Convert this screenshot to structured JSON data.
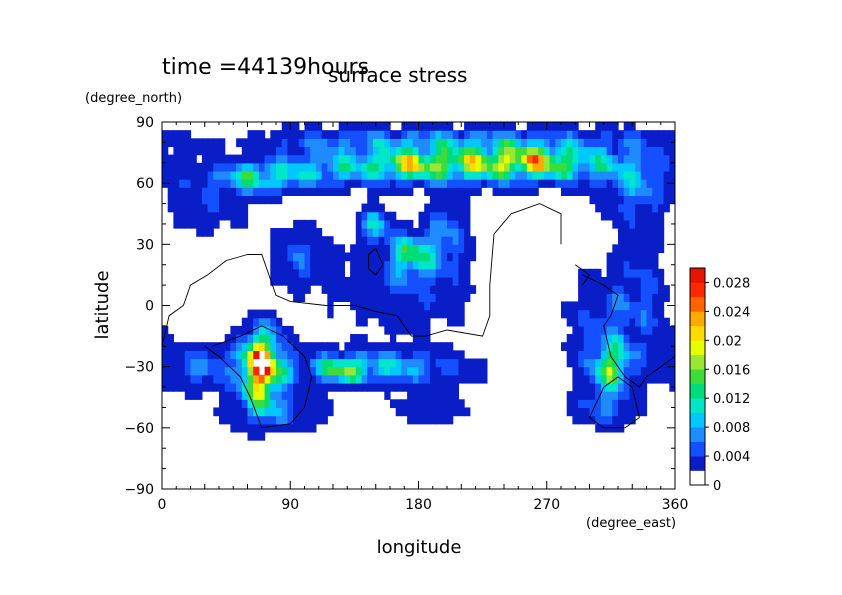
{
  "chart_data": {
    "type": "heatmap",
    "title": "surface stress",
    "subtitle": "time =44139hours",
    "xlabel": "longitude",
    "ylabel": "latitude",
    "x_unit": "(degree_east)",
    "y_unit": "(degree_north)",
    "xlim": [
      0,
      360
    ],
    "ylim": [
      -90,
      90
    ],
    "x_ticks": [
      "0",
      "90",
      "180",
      "270",
      "360"
    ],
    "y_ticks": [
      "90",
      "60",
      "30",
      "0",
      "−30",
      "−60",
      "−90"
    ],
    "x_tick_values": [
      0,
      90,
      180,
      270,
      360
    ],
    "y_tick_values": [
      90,
      60,
      30,
      0,
      -30,
      -60,
      -90
    ],
    "colorbar": {
      "min": 0,
      "max": 0.03,
      "tick_labels": [
        "0",
        "0.004",
        "0.008",
        "0.012",
        "0.016",
        "0.02",
        "0.024",
        "0.028"
      ],
      "tick_values": [
        0,
        0.004,
        0.008,
        0.012,
        0.016,
        0.02,
        0.024,
        0.028
      ],
      "colors": [
        "#ffffff",
        "#0a1ec8",
        "#1450ff",
        "#1e8cff",
        "#00c8ff",
        "#00e6c8",
        "#00dc78",
        "#3cdc3c",
        "#9ae632",
        "#e6ff00",
        "#ffdc00",
        "#ffaa00",
        "#ff6400",
        "#ff2800",
        "#e61400"
      ]
    },
    "features": [
      {
        "name": "upper-jet",
        "lon": 220,
        "lat": 70,
        "sx": 70,
        "sy": 7,
        "amp": 0.018
      },
      {
        "name": "upper-jet-core",
        "lon": 260,
        "lat": 71,
        "sx": 25,
        "sy": 5,
        "amp": 0.01
      },
      {
        "name": "upper-jet-core-west",
        "lon": 170,
        "lat": 69,
        "sx": 15,
        "sy": 4,
        "amp": 0.008
      },
      {
        "name": "upper-jet-west",
        "lon": 65,
        "lat": 63,
        "sx": 20,
        "sy": 5,
        "amp": 0.012
      },
      {
        "name": "upper-jet-link",
        "lon": 110,
        "lat": 66,
        "sx": 25,
        "sy": 6,
        "amp": 0.006
      },
      {
        "name": "polar-band",
        "lon": 180,
        "lat": 82,
        "sx": 140,
        "sy": 4,
        "amp": 0.006
      },
      {
        "name": "mid-west",
        "lon": 20,
        "lat": 50,
        "sx": 30,
        "sy": 10,
        "amp": 0.005
      },
      {
        "name": "mid-east",
        "lon": 335,
        "lat": 60,
        "sx": 20,
        "sy": 12,
        "amp": 0.007
      },
      {
        "name": "tropic-a",
        "lon": 175,
        "lat": 25,
        "sx": 10,
        "sy": 7,
        "amp": 0.014
      },
      {
        "name": "tropic-b",
        "lon": 150,
        "lat": 40,
        "sx": 8,
        "sy": 6,
        "amp": 0.01
      },
      {
        "name": "tropic-c",
        "lon": 200,
        "lat": 35,
        "sx": 10,
        "sy": 12,
        "amp": 0.008
      },
      {
        "name": "tropic-d",
        "lon": 95,
        "lat": 25,
        "sx": 12,
        "sy": 10,
        "amp": 0.006
      },
      {
        "name": "tropic-field",
        "lon": 170,
        "lat": 10,
        "sx": 40,
        "sy": 15,
        "amp": 0.005
      },
      {
        "name": "southern-jet",
        "lon": 150,
        "lat": -30,
        "sx": 45,
        "sy": 6,
        "amp": 0.011
      },
      {
        "name": "southern-jet-peak",
        "lon": 125,
        "lat": -32,
        "sx": 12,
        "sy": 4,
        "amp": 0.01
      },
      {
        "name": "south-peak",
        "lon": 70,
        "lat": -30,
        "sx": 10,
        "sy": 12,
        "amp": 0.032
      },
      {
        "name": "south-west-band",
        "lon": 25,
        "lat": -30,
        "sx": 20,
        "sy": 8,
        "amp": 0.007
      },
      {
        "name": "south-lower",
        "lon": 80,
        "lat": -52,
        "sx": 25,
        "sy": 7,
        "amp": 0.006
      },
      {
        "name": "east-blob",
        "lon": 315,
        "lat": -30,
        "sx": 10,
        "sy": 8,
        "amp": 0.015
      },
      {
        "name": "east-field",
        "lon": 315,
        "lat": -10,
        "sx": 25,
        "sy": 20,
        "amp": 0.006
      },
      {
        "name": "east-low",
        "lon": 310,
        "lat": -50,
        "sx": 15,
        "sy": 7,
        "amp": 0.006
      },
      {
        "name": "east-far",
        "lon": 345,
        "lat": 15,
        "sx": 15,
        "sy": 20,
        "amp": 0.005
      },
      {
        "name": "south-mid",
        "lon": 190,
        "lat": -50,
        "sx": 20,
        "sy": 6,
        "amp": 0.004
      }
    ],
    "mask_regions": [
      {
        "lon": 245,
        "lat": 10,
        "sx": 18,
        "sy": 25
      },
      {
        "lon": 255,
        "lat": -25,
        "sx": 14,
        "sy": 30
      },
      {
        "lon": 270,
        "lat": 20,
        "sx": 12,
        "sy": 10
      },
      {
        "lon": 45,
        "lat": 85,
        "sx": 20,
        "sy": 4
      },
      {
        "lon": 360,
        "lat": 30,
        "sx": 12,
        "sy": 30
      }
    ],
    "coastlines": [
      [
        [
          60,
          25
        ],
        [
          45,
          22
        ],
        [
          32,
          15
        ],
        [
          20,
          10
        ],
        [
          15,
          0
        ],
        [
          5,
          -5
        ],
        [
          0,
          -20
        ],
        [
          0,
          -25
        ]
      ],
      [
        [
          60,
          25
        ],
        [
          70,
          25
        ],
        [
          75,
          15
        ],
        [
          80,
          5
        ],
        [
          90,
          2
        ],
        [
          115,
          0
        ],
        [
          135,
          0
        ],
        [
          150,
          -3
        ],
        [
          165,
          -5
        ],
        [
          175,
          -15
        ],
        [
          185,
          -15
        ],
        [
          200,
          -12
        ],
        [
          225,
          -15
        ],
        [
          230,
          -5
        ],
        [
          230,
          10
        ],
        [
          233,
          35
        ],
        [
          245,
          45
        ],
        [
          265,
          50
        ],
        [
          280,
          45
        ],
        [
          280,
          30
        ]
      ],
      [
        [
          30,
          -20
        ],
        [
          40,
          -25
        ],
        [
          55,
          -35
        ],
        [
          62,
          -45
        ],
        [
          70,
          -60
        ],
        [
          90,
          -58
        ],
        [
          100,
          -50
        ],
        [
          105,
          -35
        ],
        [
          100,
          -25
        ],
        [
          85,
          -15
        ],
        [
          70,
          -10
        ],
        [
          55,
          -15
        ],
        [
          35,
          -20
        ]
      ],
      [
        [
          145,
          25
        ],
        [
          150,
          28
        ],
        [
          155,
          20
        ],
        [
          150,
          15
        ],
        [
          145,
          18
        ],
        [
          145,
          25
        ]
      ],
      [
        [
          295,
          15
        ],
        [
          310,
          10
        ],
        [
          320,
          5
        ],
        [
          315,
          -5
        ],
        [
          310,
          -10
        ],
        [
          315,
          -25
        ],
        [
          325,
          -35
        ],
        [
          335,
          -40
        ],
        [
          340,
          -35
        ],
        [
          350,
          -30
        ],
        [
          360,
          -25
        ]
      ],
      [
        [
          300,
          -55
        ],
        [
          310,
          -40
        ],
        [
          320,
          -35
        ],
        [
          330,
          -40
        ],
        [
          335,
          -55
        ],
        [
          325,
          -60
        ],
        [
          310,
          -60
        ],
        [
          300,
          -55
        ]
      ],
      [
        [
          290,
          20
        ],
        [
          300,
          15
        ],
        [
          295,
          10
        ]
      ]
    ]
  }
}
